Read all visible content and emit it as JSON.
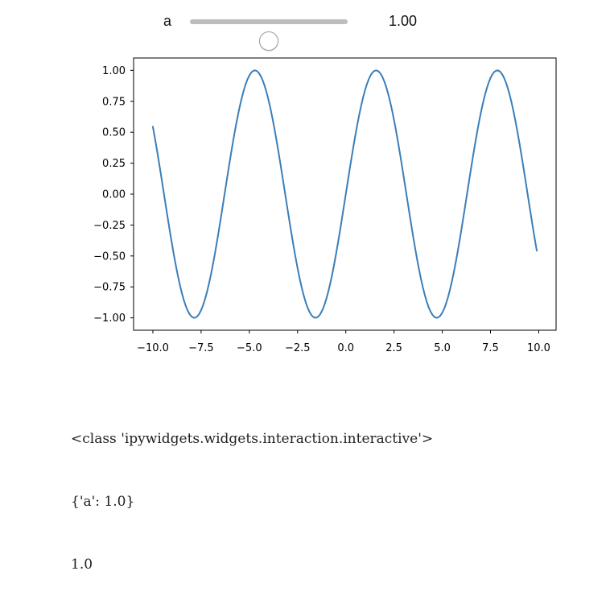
{
  "slider": {
    "label": "a",
    "value": 1.0,
    "min": 0,
    "max": 2,
    "readout": "1.00"
  },
  "chart_data": {
    "type": "line",
    "function": "sin(a*x)",
    "a": 1.0,
    "x_start": -10.0,
    "x_end": 9.9,
    "x_step": 0.1,
    "xlim": [
      -11.0,
      10.9
    ],
    "ylim": [
      -1.1,
      1.1
    ],
    "xticks": [
      -10.0,
      -7.5,
      -5.0,
      -2.5,
      0.0,
      2.5,
      5.0,
      7.5,
      10.0
    ],
    "xtick_labels": [
      "−10.0",
      "−7.5",
      "−5.0",
      "−2.5",
      "0.0",
      "2.5",
      "5.0",
      "7.5",
      "10.0"
    ],
    "yticks": [
      1.0,
      0.75,
      0.5,
      0.25,
      0.0,
      -0.25,
      -0.5,
      -0.75,
      -1.0
    ],
    "ytick_labels": [
      "1.00",
      "0.75",
      "0.50",
      "0.25",
      "0.00",
      "−0.25",
      "−0.50",
      "−0.75",
      "−1.00"
    ],
    "line_color": "#3b7eb8",
    "grid": false,
    "title": "",
    "xlabel": "",
    "ylabel": ""
  },
  "output": {
    "lines": [
      "<class 'ipywidgets.widgets.interaction.interactive'>",
      "{'a': 1.0}",
      "1.0"
    ]
  }
}
